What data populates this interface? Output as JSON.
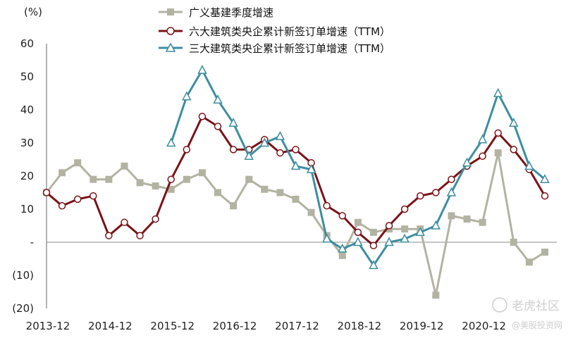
{
  "chart_data": {
    "type": "line",
    "unit_label": "(%)",
    "x_tick_labels": [
      "2013-12",
      "2014-12",
      "2015-12",
      "2016-12",
      "2017-12",
      "2018-12",
      "2019-12",
      "2020-12"
    ],
    "y_tick_labels": [
      "60",
      "50",
      "40",
      "30",
      "20",
      "10",
      "-",
      "(10)",
      "(20)"
    ],
    "ylim": [
      -20,
      60
    ],
    "grid": false,
    "legend_position": "top",
    "series": [
      {
        "name": "广义基建季度增速",
        "color": "#b3b3a2",
        "marker": "square",
        "start_index": 0,
        "values": [
          15,
          21,
          24,
          19,
          19,
          23,
          18,
          17,
          16,
          19,
          21,
          15,
          11,
          19,
          16,
          15,
          13,
          9,
          2,
          -4,
          6,
          3,
          4,
          4,
          4,
          -16,
          8,
          7,
          6,
          27,
          0,
          -6,
          -3
        ]
      },
      {
        "name": "六大建筑类央企累计新签订单增速（TTM）",
        "color": "#7a1318",
        "marker": "circle",
        "start_index": 0,
        "values": [
          15,
          11,
          13,
          14,
          2,
          6,
          2,
          7,
          19,
          28,
          38,
          35,
          28,
          28,
          31,
          27,
          28,
          24,
          11,
          8,
          3,
          -1,
          5,
          10,
          14,
          15,
          19,
          23,
          26,
          33,
          28,
          22,
          14
        ]
      },
      {
        "name": "三大建筑类央企累计新签订单增速（TTM）",
        "color": "#3d8ea0",
        "marker": "triangle",
        "start_index": 8,
        "values": [
          30,
          44,
          52,
          43,
          36,
          26,
          30,
          32,
          23,
          22,
          1,
          -2,
          0,
          -7,
          0,
          1,
          3,
          5,
          15,
          24,
          31,
          45,
          36,
          23,
          19
        ]
      }
    ]
  },
  "watermark": {
    "logo_text": "老虎社区",
    "sub_text": "@美股投资网"
  }
}
